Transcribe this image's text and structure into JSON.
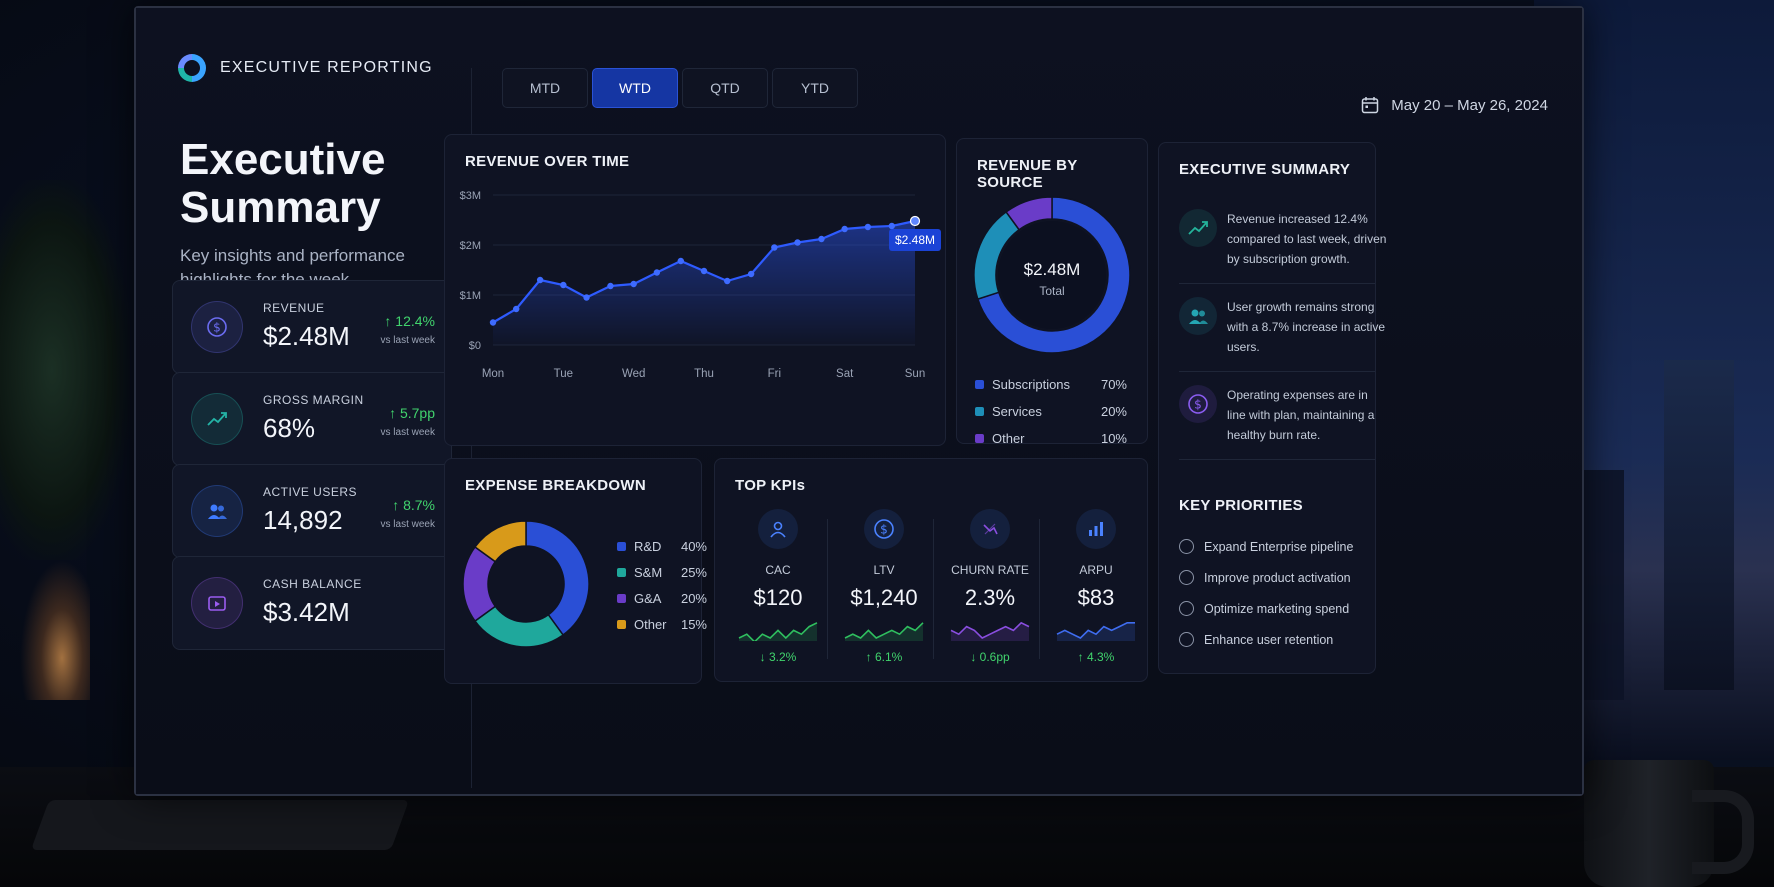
{
  "brand": {
    "name": "EXECUTIVE REPORTING"
  },
  "page": {
    "title": "Executive Summary",
    "subtitle": "Key insights and performance highlights for the week."
  },
  "kpis": [
    {
      "label": "REVENUE",
      "value": "$2.48M",
      "delta": "↑ 12.4%",
      "sub": "vs last week",
      "icon": "dollar-icon",
      "color": "#6b6cf0"
    },
    {
      "label": "GROSS MARGIN",
      "value": "68%",
      "delta": "↑ 5.7pp",
      "sub": "vs last week",
      "icon": "trend-up-icon",
      "color": "#24b3a6"
    },
    {
      "label": "ACTIVE USERS",
      "value": "14,892",
      "delta": "↑ 8.7%",
      "sub": "vs last week",
      "icon": "users-icon",
      "color": "#3f7bff"
    },
    {
      "label": "CASH BALANCE",
      "value": "$3.42M",
      "delta": "",
      "sub": "",
      "icon": "wallet-icon",
      "color": "#9a5cf0"
    }
  ],
  "tabs": [
    {
      "label": "MTD",
      "active": false
    },
    {
      "label": "WTD",
      "active": true
    },
    {
      "label": "QTD",
      "active": false
    },
    {
      "label": "YTD",
      "active": false
    }
  ],
  "date_range": "May 20 – May 26, 2024",
  "revenue_over_time": {
    "title": "REVENUE OVER TIME",
    "callout": "$2.48M"
  },
  "revenue_by_source": {
    "title": "REVENUE BY SOURCE",
    "center_value": "$2.48M",
    "center_label": "Total",
    "legend": [
      {
        "name": "Subscriptions",
        "value": "70%",
        "color": "#2a4fd6"
      },
      {
        "name": "Services",
        "value": "20%",
        "color": "#1e8fb8"
      },
      {
        "name": "Other",
        "value": "10%",
        "color": "#6a3cc8"
      }
    ]
  },
  "expense_breakdown": {
    "title": "EXPENSE BREAKDOWN",
    "legend": [
      {
        "name": "R&D",
        "value": "40%",
        "color": "#2a4fd6"
      },
      {
        "name": "S&M",
        "value": "25%",
        "color": "#1fa89c"
      },
      {
        "name": "G&A",
        "value": "20%",
        "color": "#6a3cc8"
      },
      {
        "name": "Other",
        "value": "15%",
        "color": "#d89a1a"
      }
    ]
  },
  "top_kpis": {
    "title": "TOP KPIs",
    "items": [
      {
        "label": "CAC",
        "value": "$120",
        "delta": "↓ 3.2%",
        "icon": "user-icon",
        "spark_color": "#2fbf5f",
        "delta_color": "#41d36d"
      },
      {
        "label": "LTV",
        "value": "$1,240",
        "delta": "↑ 6.1%",
        "icon": "dollar-icon",
        "spark_color": "#2fbf5f",
        "delta_color": "#41d36d"
      },
      {
        "label": "CHURN RATE",
        "value": "2.3%",
        "delta": "↓ 0.6pp",
        "icon": "churn-icon",
        "spark_color": "#8a4ee0",
        "delta_color": "#41d36d"
      },
      {
        "label": "ARPU",
        "value": "$83",
        "delta": "↑ 4.3%",
        "icon": "bar-chart-icon",
        "spark_color": "#3f6df0",
        "delta_color": "#41d36d"
      }
    ]
  },
  "executive_summary": {
    "title": "EXECUTIVE SUMMARY",
    "items": [
      {
        "text": "Revenue increased 12.4% compared to last week, driven by subscription growth.",
        "icon": "trend-up-icon",
        "color": "#24b39a"
      },
      {
        "text": "User growth remains strong with a 8.7% increase in active users.",
        "icon": "users-icon",
        "color": "#24a6b3"
      },
      {
        "text": "Operating expenses are in line with plan, maintaining a healthy burn rate.",
        "icon": "dollar-icon",
        "color": "#8a5cf0"
      }
    ]
  },
  "key_priorities": {
    "title": "KEY PRIORITIES",
    "items": [
      "Expand Enterprise pipeline",
      "Improve product activation",
      "Optimize marketing spend",
      "Enhance user retention"
    ]
  },
  "chart_data": [
    {
      "type": "area",
      "title": "REVENUE OVER TIME",
      "categories": [
        "Mon",
        "Tue",
        "Wed",
        "Thu",
        "Fri",
        "Sat",
        "Sun"
      ],
      "x": [
        0,
        0.33,
        0.67,
        1,
        1.33,
        1.67,
        2,
        2.33,
        2.67,
        3,
        3.33,
        3.67,
        4,
        4.33,
        4.67,
        5,
        5.33,
        5.67,
        6
      ],
      "values": [
        0.45,
        0.72,
        1.3,
        1.2,
        0.95,
        1.18,
        1.22,
        1.45,
        1.68,
        1.48,
        1.28,
        1.42,
        1.95,
        2.05,
        2.12,
        2.32,
        2.36,
        2.38,
        2.48
      ],
      "yticks": [
        "$0",
        "$1M",
        "$2M",
        "$3M"
      ],
      "ylim": [
        0,
        3
      ],
      "grid": true,
      "color": "#2e5bff"
    },
    {
      "type": "pie",
      "title": "REVENUE BY SOURCE",
      "categories": [
        "Subscriptions",
        "Services",
        "Other"
      ],
      "values": [
        70,
        20,
        10
      ]
    },
    {
      "type": "pie",
      "title": "EXPENSE BREAKDOWN",
      "categories": [
        "R&D",
        "S&M",
        "G&A",
        "Other"
      ],
      "values": [
        40,
        25,
        20,
        15
      ]
    }
  ]
}
